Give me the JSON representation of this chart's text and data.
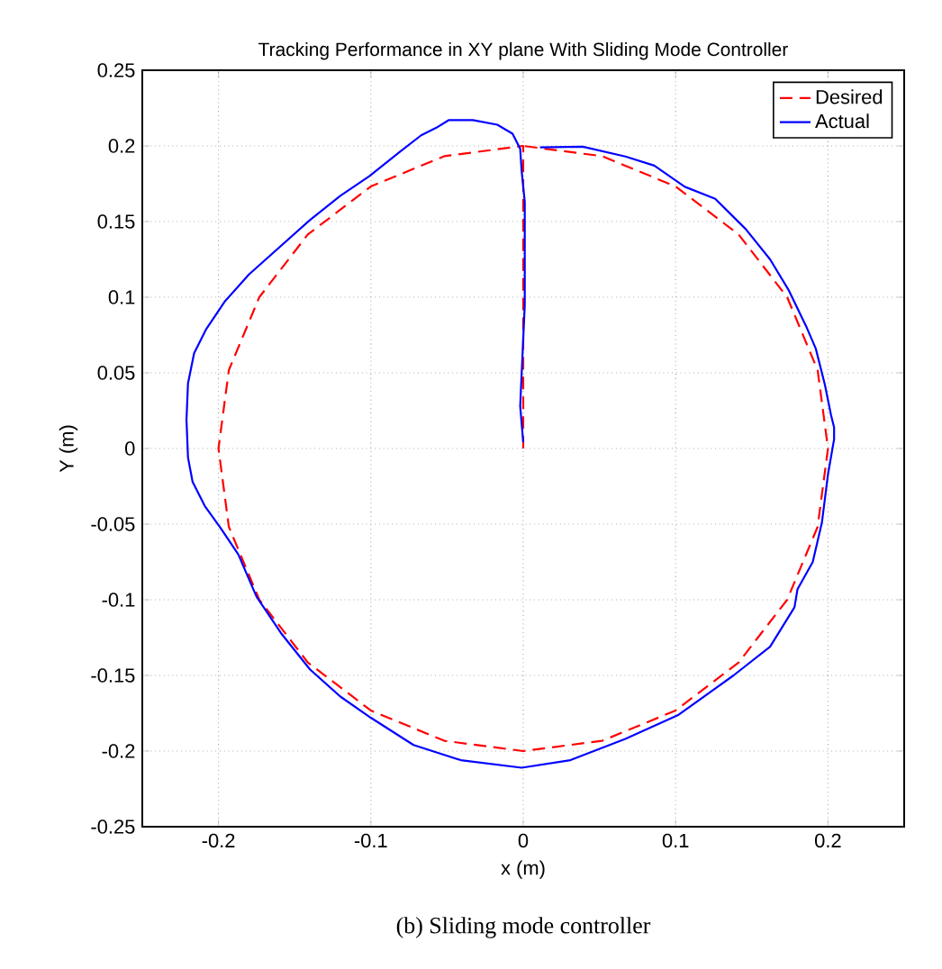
{
  "chart_data": {
    "type": "line",
    "title": "Tracking Performance in XY plane With Sliding Mode Controller",
    "xlabel": "x (m)",
    "ylabel": "Y (m)",
    "annotations": [
      "(b) Sliding mode controller"
    ],
    "xlim": [
      -0.25,
      0.25
    ],
    "ylim": [
      -0.25,
      0.25
    ],
    "xticks": [
      -0.2,
      -0.1,
      0,
      0.1,
      0.2
    ],
    "yticks": [
      -0.25,
      -0.2,
      -0.15,
      -0.1,
      -0.05,
      0,
      0.05,
      0.1,
      0.15,
      0.2,
      0.25
    ],
    "grid": true,
    "legend": "top right",
    "marker": "none",
    "series": [
      {
        "name": "Desired",
        "color": "#ff0000",
        "line_style": "dashed",
        "x": [
          0,
          0,
          -0.0518,
          -0.1,
          -0.1414,
          -0.1732,
          -0.1932,
          -0.2,
          -0.1932,
          -0.1732,
          -0.1414,
          -0.1,
          -0.0518,
          0,
          0.0518,
          0.1,
          0.1414,
          0.1732,
          0.1932,
          0.2,
          0.1932,
          0.1732,
          0.1414,
          0.1,
          0.0518,
          0
        ],
        "values": [
          0,
          0.2,
          0.1932,
          0.1732,
          0.1414,
          0.1,
          0.0518,
          0,
          -0.0518,
          -0.1,
          -0.1414,
          -0.1732,
          -0.1932,
          -0.2,
          -0.1932,
          -0.1732,
          -0.1414,
          -0.1,
          -0.0518,
          0,
          0.0518,
          0.1,
          0.1414,
          0.1732,
          0.1932,
          0.2
        ]
      },
      {
        "name": "Actual",
        "color": "#0000ff",
        "line_style": "solid",
        "x": [
          0,
          -0.002,
          0.001,
          0.001,
          -0.001,
          -0.002,
          -0.007,
          -0.017,
          -0.033,
          -0.049,
          -0.057,
          -0.067,
          -0.081,
          -0.101,
          -0.12,
          -0.14,
          -0.16,
          -0.18,
          -0.196,
          -0.208,
          -0.216,
          -0.22,
          -0.221,
          -0.22,
          -0.217,
          -0.209,
          -0.199,
          -0.187,
          -0.175,
          -0.159,
          -0.14,
          -0.12,
          -0.1,
          -0.072,
          -0.041,
          -0.001,
          0.031,
          0.067,
          0.102,
          0.138,
          0.162,
          0.178,
          0.18,
          0.19,
          0.196,
          0.2,
          0.204,
          0.204,
          0.202,
          0.198,
          0.192,
          0.186,
          0.174,
          0.162,
          0.146,
          0.126,
          0.106,
          0.086,
          0.067,
          0.039,
          0.011
        ],
        "values": [
          0.004,
          0.028,
          0.095,
          0.163,
          0.183,
          0.198,
          0.208,
          0.214,
          0.217,
          0.217,
          0.212,
          0.207,
          0.196,
          0.18,
          0.167,
          0.151,
          0.133,
          0.115,
          0.097,
          0.079,
          0.063,
          0.043,
          0.019,
          -0.006,
          -0.022,
          -0.038,
          -0.052,
          -0.07,
          -0.098,
          -0.122,
          -0.146,
          -0.164,
          -0.178,
          -0.196,
          -0.206,
          -0.211,
          -0.206,
          -0.192,
          -0.176,
          -0.15,
          -0.131,
          -0.105,
          -0.093,
          -0.075,
          -0.049,
          -0.017,
          0.006,
          0.014,
          0.022,
          0.042,
          0.066,
          0.08,
          0.105,
          0.125,
          0.145,
          0.165,
          0.173,
          0.187,
          0.193,
          0.1995,
          0.199
        ]
      }
    ]
  }
}
